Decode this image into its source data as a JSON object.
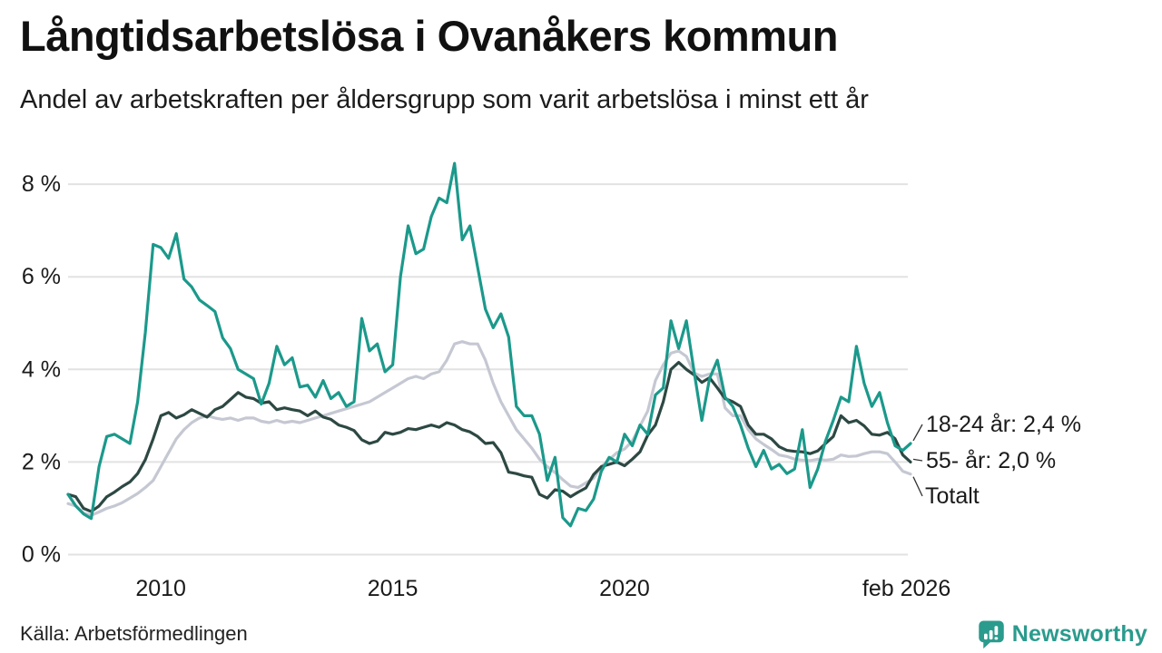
{
  "header": {
    "title": "Långtidsarbetslösa i Ovanåkers kommun",
    "subtitle": "Andel av arbetskraften per åldersgrupp som varit arbetslösa i minst ett år"
  },
  "footer": {
    "source": "Källa: Arbetsförmedlingen",
    "logo_text": "Newsworthy"
  },
  "colors": {
    "teal": "#1b998b",
    "dark": "#2d4843",
    "gray": "#c5c8d2",
    "grid": "#e2e2e2",
    "text": "#1a1a1a",
    "logo": "#2a9b8d"
  },
  "chart_data": {
    "type": "line",
    "title": "Långtidsarbetslösa i Ovanåkers kommun",
    "subtitle": "Andel av arbetskraften per åldersgrupp som varit arbetslösa i minst ett år",
    "x_start_year": 2008,
    "x_end_label": "feb 2026",
    "points_per_year": 6,
    "x_ticks": [
      {
        "label": "2010",
        "year": 2010
      },
      {
        "label": "2015",
        "year": 2015
      },
      {
        "label": "2020",
        "year": 2020
      },
      {
        "label": "feb 2026",
        "year": 2026.08
      }
    ],
    "y_ticks": [
      {
        "label": "0 %",
        "value": 0
      },
      {
        "label": "2 %",
        "value": 2
      },
      {
        "label": "4 %",
        "value": 4
      },
      {
        "label": "6 %",
        "value": 6
      },
      {
        "label": "8 %",
        "value": 8
      }
    ],
    "ylim": [
      0,
      8.6
    ],
    "grid": true,
    "legend_position": "right-end-labels",
    "series": [
      {
        "name": "18-24 år",
        "end_label": "18-24 år: 2,4 %",
        "last_value": "2,4 %",
        "color_key": "teal",
        "values": [
          1.3,
          1.05,
          0.88,
          0.78,
          1.9,
          2.55,
          2.6,
          2.5,
          2.4,
          3.3,
          4.8,
          6.7,
          6.63,
          6.4,
          6.93,
          5.95,
          5.78,
          5.5,
          5.38,
          5.25,
          4.68,
          4.45,
          4.0,
          3.9,
          3.8,
          3.25,
          3.7,
          4.5,
          4.1,
          4.25,
          3.62,
          3.66,
          3.4,
          3.76,
          3.37,
          3.5,
          3.2,
          3.3,
          5.1,
          4.4,
          4.55,
          3.95,
          4.1,
          6.0,
          7.1,
          6.5,
          6.6,
          7.3,
          7.7,
          7.6,
          8.45,
          6.8,
          7.1,
          6.2,
          5.3,
          4.9,
          5.2,
          4.7,
          3.2,
          3.0,
          3.0,
          2.6,
          1.6,
          2.1,
          0.8,
          0.62,
          1.0,
          0.95,
          1.2,
          1.8,
          2.1,
          2.0,
          2.6,
          2.35,
          2.8,
          2.6,
          3.45,
          3.6,
          5.05,
          4.45,
          5.05,
          3.95,
          2.9,
          3.8,
          4.2,
          3.4,
          3.2,
          2.8,
          2.3,
          1.9,
          2.25,
          1.85,
          1.95,
          1.75,
          1.85,
          2.7,
          1.45,
          1.85,
          2.45,
          2.9,
          3.4,
          3.3,
          4.5,
          3.7,
          3.2,
          3.5,
          2.85,
          2.35,
          2.25,
          2.4
        ]
      },
      {
        "name": "55- år",
        "end_label": "55- år: 2,0 %",
        "last_value": "2,0 %",
        "color_key": "dark",
        "values": [
          1.3,
          1.25,
          1.0,
          0.93,
          1.05,
          1.25,
          1.35,
          1.47,
          1.57,
          1.75,
          2.05,
          2.5,
          3.0,
          3.07,
          2.95,
          3.02,
          3.13,
          3.05,
          2.97,
          3.13,
          3.2,
          3.35,
          3.5,
          3.4,
          3.37,
          3.27,
          3.3,
          3.13,
          3.17,
          3.13,
          3.1,
          3.0,
          3.1,
          2.97,
          2.92,
          2.8,
          2.75,
          2.68,
          2.48,
          2.4,
          2.45,
          2.64,
          2.6,
          2.64,
          2.72,
          2.7,
          2.75,
          2.8,
          2.75,
          2.85,
          2.8,
          2.7,
          2.65,
          2.55,
          2.4,
          2.42,
          2.2,
          1.78,
          1.75,
          1.7,
          1.67,
          1.3,
          1.22,
          1.4,
          1.37,
          1.25,
          1.35,
          1.44,
          1.73,
          1.9,
          1.95,
          2.0,
          1.92,
          2.06,
          2.22,
          2.58,
          2.8,
          3.3,
          4.0,
          4.15,
          4.0,
          3.88,
          3.72,
          3.82,
          3.6,
          3.37,
          3.3,
          3.2,
          2.8,
          2.6,
          2.6,
          2.5,
          2.33,
          2.25,
          2.23,
          2.22,
          2.18,
          2.24,
          2.4,
          2.55,
          3.0,
          2.85,
          2.9,
          2.78,
          2.6,
          2.58,
          2.64,
          2.5,
          2.15,
          2.0
        ]
      },
      {
        "name": "Totalt",
        "end_label": "Totalt",
        "last_value": "",
        "color_key": "gray",
        "values": [
          1.1,
          1.05,
          0.9,
          0.85,
          0.92,
          1.0,
          1.05,
          1.12,
          1.22,
          1.32,
          1.45,
          1.6,
          1.9,
          2.2,
          2.5,
          2.7,
          2.85,
          2.95,
          3.0,
          2.95,
          2.92,
          2.95,
          2.9,
          2.95,
          2.95,
          2.88,
          2.85,
          2.9,
          2.85,
          2.88,
          2.85,
          2.9,
          2.95,
          3.0,
          3.05,
          3.1,
          3.15,
          3.2,
          3.25,
          3.3,
          3.4,
          3.5,
          3.6,
          3.7,
          3.8,
          3.85,
          3.8,
          3.9,
          3.95,
          4.2,
          4.55,
          4.6,
          4.55,
          4.55,
          4.2,
          3.7,
          3.3,
          3.0,
          2.7,
          2.5,
          2.3,
          2.06,
          1.9,
          1.77,
          1.62,
          1.48,
          1.45,
          1.55,
          1.65,
          1.9,
          2.05,
          2.2,
          2.28,
          2.45,
          2.78,
          3.1,
          3.76,
          4.1,
          4.35,
          4.4,
          4.28,
          3.92,
          3.85,
          3.9,
          3.9,
          3.17,
          3.0,
          3.0,
          2.7,
          2.5,
          2.38,
          2.27,
          2.15,
          2.12,
          2.06,
          2.04,
          2.03,
          2.06,
          2.04,
          2.06,
          2.15,
          2.12,
          2.13,
          2.18,
          2.22,
          2.22,
          2.18,
          2.0,
          1.8,
          1.74
        ]
      }
    ]
  }
}
